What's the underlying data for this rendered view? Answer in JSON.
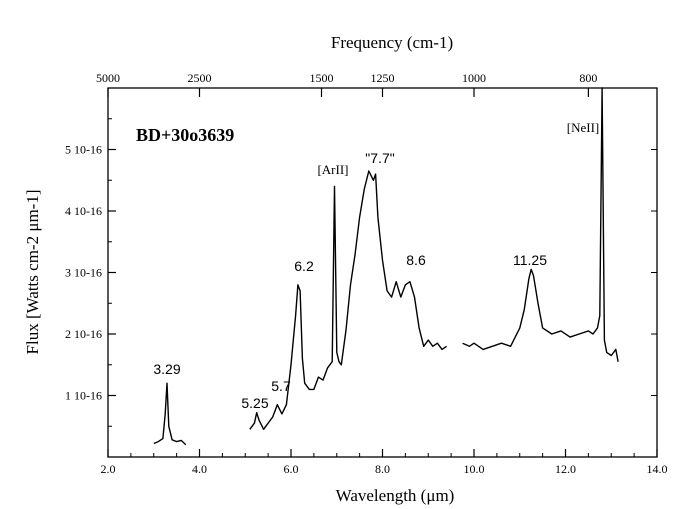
{
  "chart_data": {
    "type": "line",
    "object_label": "BD+30o3639",
    "xlabel": "Wavelength (μm)",
    "ylabel": "Flux [Watts cm-2 μm-1]",
    "top_axis_label": "Frequency (cm-1)",
    "xlim": [
      2.0,
      14.0
    ],
    "ylim": [
      0.0,
      6.0
    ],
    "x_ticks": [
      "2.0",
      "4.0",
      "6.0",
      "8.0",
      "10.0",
      "12.0",
      "14.0"
    ],
    "y_ticks": [
      "1 10-16",
      "2 10-16",
      "3 10-16",
      "4 10-16",
      "5 10-16"
    ],
    "top_ticks": [
      "5000",
      "2500",
      "1500",
      "1250",
      "1000",
      "800"
    ],
    "annotations": [
      "3.29",
      "5.25",
      "5.7",
      "6.2",
      "[ArII]",
      "\"7.7\"",
      "8.6",
      "11.25",
      "[NeII]"
    ],
    "series": [
      {
        "segments": [
          {
            "x": [
              3.0,
              3.1,
              3.2,
              3.25,
              3.29,
              3.33,
              3.4,
              3.5,
              3.6,
              3.7
            ],
            "y": [
              0.22,
              0.25,
              0.3,
              0.7,
              1.2,
              0.5,
              0.28,
              0.25,
              0.27,
              0.2
            ]
          },
          {
            "x": [
              5.1,
              5.2,
              5.25,
              5.3,
              5.4,
              5.5,
              5.6,
              5.7,
              5.8,
              5.9,
              6.0,
              6.05,
              6.1,
              6.15,
              6.2,
              6.25,
              6.3,
              6.4,
              6.5,
              6.6,
              6.7,
              6.8,
              6.9,
              6.95,
              7.0,
              7.05,
              7.1,
              7.2,
              7.3,
              7.4,
              7.5,
              7.6,
              7.7,
              7.8,
              7.85,
              7.9,
              8.0,
              8.1,
              8.2,
              8.3,
              8.4,
              8.5,
              8.6,
              8.7,
              8.8,
              8.9,
              9.0,
              9.1,
              9.2,
              9.3,
              9.4
            ],
            "y": [
              0.45,
              0.55,
              0.72,
              0.6,
              0.45,
              0.55,
              0.65,
              0.85,
              0.7,
              0.85,
              1.5,
              1.9,
              2.3,
              2.8,
              2.7,
              1.6,
              1.2,
              1.1,
              1.1,
              1.3,
              1.25,
              1.45,
              1.55,
              4.4,
              1.7,
              1.55,
              1.5,
              2.05,
              2.8,
              3.3,
              3.9,
              4.35,
              4.65,
              4.5,
              4.6,
              3.9,
              3.2,
              2.7,
              2.6,
              2.85,
              2.6,
              2.8,
              2.85,
              2.6,
              2.1,
              1.8,
              1.9,
              1.8,
              1.85,
              1.75,
              1.8
            ]
          },
          {
            "x": [
              9.75,
              9.9,
              10.0,
              10.2,
              10.4,
              10.6,
              10.8,
              11.0,
              11.1,
              11.2,
              11.25,
              11.3,
              11.4,
              11.5,
              11.7,
              11.9,
              12.1,
              12.3,
              12.5,
              12.6,
              12.7,
              12.75,
              12.8,
              12.85,
              12.9,
              13.0,
              13.1,
              13.15
            ],
            "y": [
              1.85,
              1.8,
              1.85,
              1.75,
              1.8,
              1.85,
              1.8,
              2.1,
              2.4,
              2.9,
              3.05,
              2.95,
              2.5,
              2.1,
              2.0,
              2.05,
              1.95,
              2.0,
              2.05,
              2.0,
              2.1,
              2.3,
              6.0,
              1.9,
              1.7,
              1.65,
              1.75,
              1.55
            ]
          }
        ]
      }
    ]
  }
}
